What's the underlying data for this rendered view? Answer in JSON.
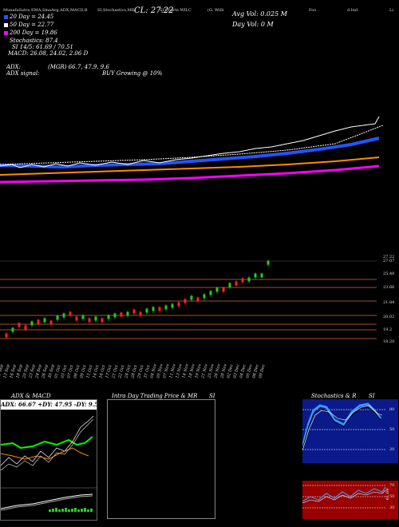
{
  "header": {
    "line": "MunafaSutra EMA,SmaAvg,ADX,MACD,B",
    "line2": "SI,Stochastics,MR",
    "line3": "SI Charts WILC",
    "line4": "(G. Willi",
    "line5": "Foo",
    "line6": "d Ind",
    "line7": "Li"
  },
  "price": {
    "label": "CL: 27.22"
  },
  "avg_vol": {
    "label": "Avg Vol: 0.025 M"
  },
  "day_vol": {
    "label": "Day Vol: 0   M"
  },
  "legend": [
    {
      "label": "20  Day = 24.45",
      "color": "#2255ff"
    },
    {
      "label": "50  Day = 22.77",
      "color": "#ffffff"
    },
    {
      "label": "200  Day = 19.86",
      "color": "#ff00ff"
    }
  ],
  "indicators": {
    "stoch": "Stochastics: 87.4",
    "rsi": "SI 14/5: 61.69 / 70.51",
    "macd": "MACD: 26.08, 24.02, 2.06  D",
    "adx": "ADX:",
    "adx_vals": "(MGR) 66.7,  47.9,  9.6",
    "adx_signal": "ADX  signal:",
    "buy": "BUY Growing @ 10%"
  },
  "price_levels": [
    "27.22",
    "27.07",
    "25.48",
    "23.66",
    "21.84",
    "20.02",
    "19.2",
    "18.20"
  ],
  "dates": [
    "11 Sep",
    "13 Sep",
    "16 Sep",
    "18 Sep",
    "20 Sep",
    "23 Sep",
    "24 Sep",
    "26 Sep",
    "30 Sep",
    "01 Oct",
    "03 Oct",
    "07 Oct",
    "08 Oct",
    "09 Oct",
    "11 Oct",
    "14 Oct",
    "16 Oct",
    "17 Oct",
    "21 Oct",
    "22 Oct",
    "24 Oct",
    "28 Oct",
    "29 Oct",
    "31 Oct",
    "04 Nov",
    "05 Nov",
    "07 Nov",
    "11 Nov",
    "13 Nov",
    "14 Nov",
    "18 Nov",
    "19 Nov",
    "21 Nov",
    "25 Nov",
    "26 Nov",
    "28 Nov",
    "02 Dec",
    "03 Dec",
    "04 Dec",
    "05 Dec",
    "06 Dec",
    "09 Dec"
  ],
  "panels": {
    "adx_title": "ADX  & MACD",
    "adx_box": "ADX: 66.67 +DY: 47.95 -DY: 9.59",
    "intraday_title": "Intra  Day Trading Price  & MR",
    "intraday_si": "SI",
    "stoch_title": "Stochastics & R",
    "stoch_si": "SI",
    "stoch_ticks": [
      "80",
      "50",
      "20"
    ],
    "rsi_ticks": [
      "70",
      "50",
      "30"
    ],
    "rsi_value": "61.69"
  },
  "colors": {
    "ma20": "#2255ff",
    "ma50": "#ffffff",
    "ma200": "#ff00ff",
    "orange": "#ff8c00",
    "up": "#22cc22",
    "down": "#ff2222",
    "level": "#a0522d"
  }
}
